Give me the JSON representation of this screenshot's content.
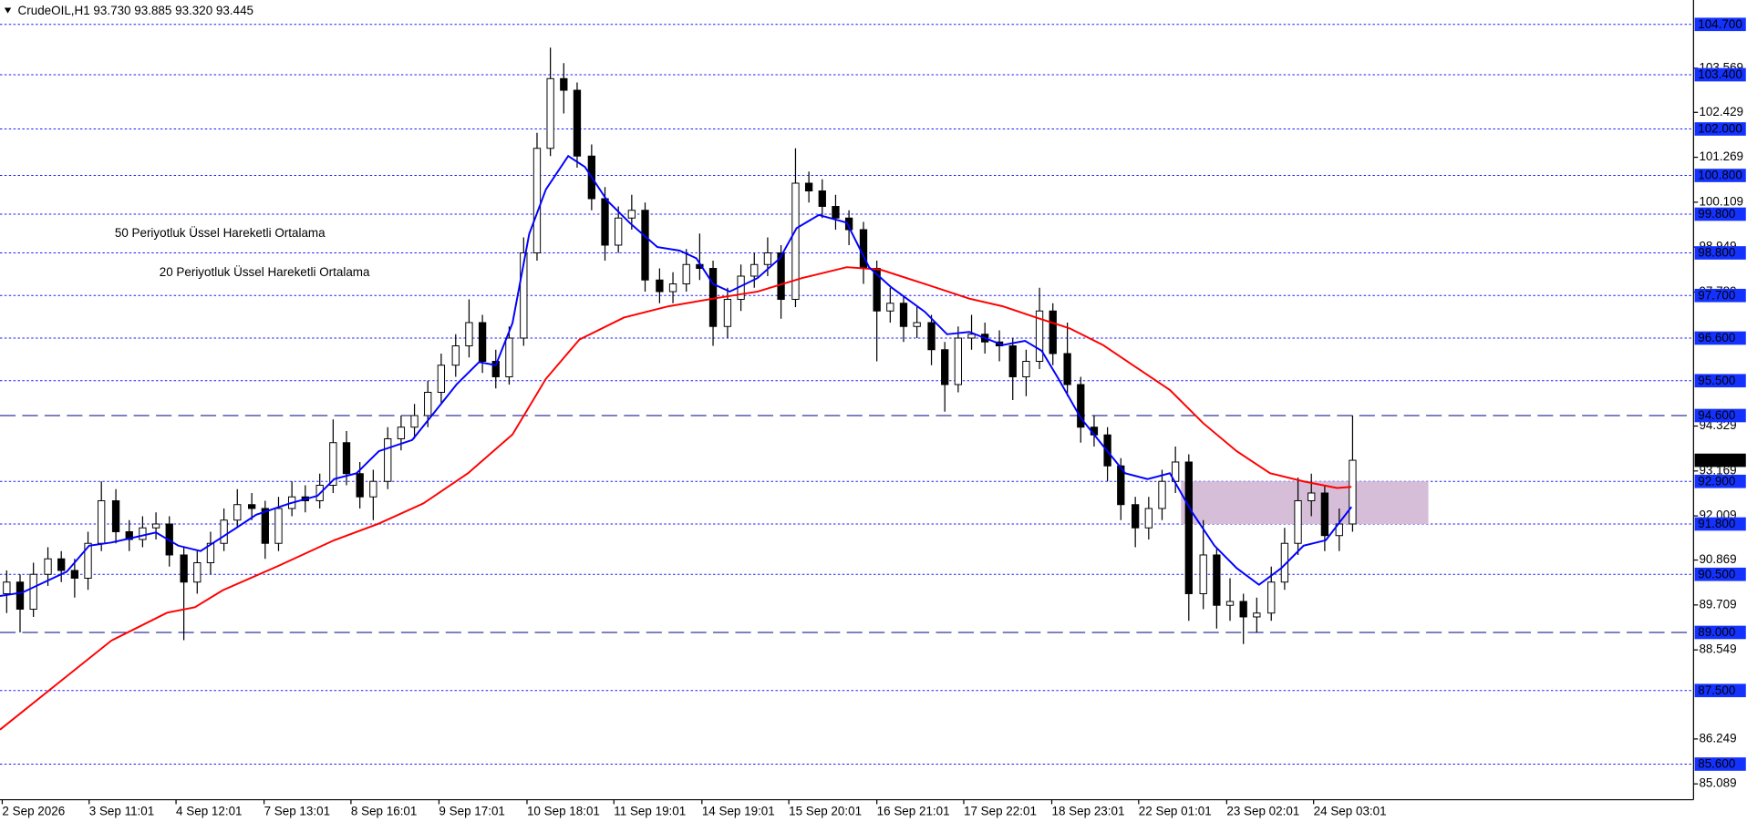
{
  "chart_data": {
    "type": "candlestick",
    "header": "CrudeOIL,H1  93.730 93.885 93.320 93.445",
    "xlim": [
      0,
      1520
    ],
    "ylim": [
      84.68,
      105.33
    ],
    "yticks": [
      103.569,
      102.429,
      101.269,
      100.109,
      98.949,
      97.789,
      94.329,
      93.169,
      92.009,
      90.869,
      89.709,
      88.549,
      86.249,
      85.089
    ],
    "xticks": [
      {
        "value": 2,
        "label": "2 Sep 2026"
      },
      {
        "value": 80,
        "label": "3 Sep 11:01"
      },
      {
        "value": 158,
        "label": "4 Sep 12:01"
      },
      {
        "value": 237,
        "label": "7 Sep 13:01"
      },
      {
        "value": 315,
        "label": "8 Sep 16:01"
      },
      {
        "value": 394,
        "label": "9 Sep 17:01"
      },
      {
        "value": 473,
        "label": "10 Sep 18:01"
      },
      {
        "value": 551,
        "label": "11 Sep 19:01"
      },
      {
        "value": 630,
        "label": "14 Sep 19:01"
      },
      {
        "value": 708,
        "label": "15 Sep 20:01"
      },
      {
        "value": 787,
        "label": "16 Sep 21:01"
      },
      {
        "value": 865,
        "label": "17 Sep 22:01"
      },
      {
        "value": 944,
        "label": "18 Sep 23:01"
      },
      {
        "value": 1022,
        "label": "22 Sep 01:01"
      },
      {
        "value": 1101,
        "label": "23 Sep 02:01"
      },
      {
        "value": 1179,
        "label": "24 Sep 03:01"
      }
    ],
    "levels": [
      {
        "value": 104.7,
        "label": "104.700",
        "style": "dot"
      },
      {
        "value": 103.4,
        "label": "103.400",
        "style": "dot"
      },
      {
        "value": 102.0,
        "label": "102.000",
        "style": "dot"
      },
      {
        "value": 100.8,
        "label": "100.800",
        "style": "dot"
      },
      {
        "value": 99.8,
        "label": "99.800",
        "style": "dot"
      },
      {
        "value": 98.8,
        "label": "98.800",
        "style": "dot"
      },
      {
        "value": 97.7,
        "label": "97.700",
        "style": "dot"
      },
      {
        "value": 96.6,
        "label": "96.600",
        "style": "dot"
      },
      {
        "value": 95.5,
        "label": "95.500",
        "style": "dot"
      },
      {
        "value": 94.6,
        "label": "94.600",
        "style": "dash"
      },
      {
        "value": 92.9,
        "label": "92.900",
        "style": "dot"
      },
      {
        "value": 91.8,
        "label": "91.800",
        "style": "dot"
      },
      {
        "value": 90.5,
        "label": "90.500",
        "style": "dot"
      },
      {
        "value": 89.0,
        "label": "89.000",
        "style": "dash"
      },
      {
        "value": 87.5,
        "label": "87.500",
        "style": "dot"
      },
      {
        "value": 85.6,
        "label": "85.600",
        "style": "dot"
      }
    ],
    "last_price": 93.445,
    "zone": {
      "x": [
        1060,
        1282
      ],
      "y": [
        91.8,
        92.9
      ],
      "color": "#d6bdd8"
    },
    "x": [
      6,
      18,
      30,
      43,
      55,
      67,
      79,
      91,
      104,
      116,
      128,
      140,
      152,
      165,
      177,
      189,
      201,
      213,
      226,
      238,
      250,
      262,
      274,
      287,
      299,
      311,
      323,
      335,
      348,
      360,
      372,
      384,
      396,
      409,
      421,
      433,
      445,
      457,
      470,
      482,
      494,
      506,
      518,
      531,
      543,
      555,
      567,
      579,
      592,
      604,
      616,
      628,
      640,
      653,
      665,
      677,
      689,
      701,
      714,
      726,
      738,
      750,
      762,
      775,
      787,
      799,
      811,
      823,
      836,
      848,
      860,
      872,
      884,
      897,
      909,
      921,
      933,
      945,
      958,
      970,
      982,
      994,
      1006,
      1019,
      1031,
      1043,
      1055,
      1067,
      1080,
      1092,
      1104,
      1116,
      1128,
      1141,
      1153,
      1165,
      1177,
      1189,
      1202,
      1214
    ],
    "ohlc": [
      [
        90.0,
        90.6,
        89.5,
        90.3
      ],
      [
        90.3,
        90.5,
        89.0,
        89.6
      ],
      [
        89.6,
        90.8,
        89.4,
        90.5
      ],
      [
        90.5,
        91.2,
        90.2,
        90.9
      ],
      [
        90.9,
        91.1,
        90.3,
        90.6
      ],
      [
        90.6,
        90.9,
        89.9,
        90.4
      ],
      [
        90.4,
        91.6,
        90.1,
        91.3
      ],
      [
        91.3,
        92.9,
        91.1,
        92.4
      ],
      [
        92.4,
        92.7,
        91.3,
        91.6
      ],
      [
        91.6,
        91.9,
        91.1,
        91.4
      ],
      [
        91.4,
        92.0,
        91.2,
        91.7
      ],
      [
        91.7,
        92.1,
        91.4,
        91.8
      ],
      [
        91.8,
        92.0,
        90.7,
        91.0
      ],
      [
        91.0,
        91.2,
        88.8,
        90.3
      ],
      [
        90.3,
        91.1,
        90.0,
        90.8
      ],
      [
        90.8,
        91.6,
        90.5,
        91.3
      ],
      [
        91.3,
        92.2,
        91.1,
        91.9
      ],
      [
        91.9,
        92.7,
        91.7,
        92.3
      ],
      [
        92.3,
        92.6,
        91.9,
        92.2
      ],
      [
        92.2,
        92.4,
        90.9,
        91.3
      ],
      [
        91.3,
        92.5,
        91.1,
        92.2
      ],
      [
        92.2,
        92.9,
        92.0,
        92.5
      ],
      [
        92.5,
        92.8,
        92.1,
        92.4
      ],
      [
        92.4,
        93.1,
        92.2,
        92.8
      ],
      [
        92.8,
        94.5,
        92.6,
        93.9
      ],
      [
        93.9,
        94.2,
        92.8,
        93.1
      ],
      [
        93.1,
        93.4,
        92.2,
        92.5
      ],
      [
        92.5,
        93.2,
        91.9,
        92.9
      ],
      [
        92.9,
        94.3,
        92.7,
        94.0
      ],
      [
        94.0,
        94.6,
        93.7,
        94.3
      ],
      [
        94.3,
        94.9,
        94.0,
        94.6
      ],
      [
        94.6,
        95.5,
        94.3,
        95.2
      ],
      [
        95.2,
        96.2,
        94.9,
        95.9
      ],
      [
        95.9,
        96.7,
        95.6,
        96.4
      ],
      [
        96.4,
        97.6,
        96.1,
        97.0
      ],
      [
        97.0,
        97.2,
        95.7,
        96.0
      ],
      [
        96.0,
        96.3,
        95.3,
        95.6
      ],
      [
        95.6,
        96.9,
        95.4,
        96.6
      ],
      [
        96.6,
        99.2,
        96.4,
        98.8
      ],
      [
        98.8,
        101.9,
        98.6,
        101.5
      ],
      [
        101.5,
        104.1,
        101.3,
        103.3
      ],
      [
        103.3,
        103.7,
        102.4,
        103.0
      ],
      [
        103.0,
        103.2,
        101.0,
        101.3
      ],
      [
        101.3,
        101.6,
        99.9,
        100.2
      ],
      [
        100.2,
        100.5,
        98.6,
        99.0
      ],
      [
        99.0,
        100.0,
        98.8,
        99.7
      ],
      [
        99.7,
        100.3,
        99.4,
        99.9
      ],
      [
        99.9,
        100.1,
        97.8,
        98.1
      ],
      [
        98.1,
        98.4,
        97.5,
        97.8
      ],
      [
        97.8,
        98.3,
        97.5,
        98.0
      ],
      [
        98.0,
        98.9,
        97.8,
        98.5
      ],
      [
        98.5,
        99.3,
        98.1,
        98.4
      ],
      [
        98.4,
        98.6,
        96.4,
        96.9
      ],
      [
        96.9,
        97.9,
        96.6,
        97.6
      ],
      [
        97.6,
        98.5,
        97.3,
        98.2
      ],
      [
        98.2,
        98.8,
        97.9,
        98.5
      ],
      [
        98.5,
        99.2,
        98.2,
        98.8
      ],
      [
        98.8,
        99.0,
        97.1,
        97.6
      ],
      [
        97.6,
        101.5,
        97.4,
        100.6
      ],
      [
        100.6,
        100.9,
        100.1,
        100.4
      ],
      [
        100.4,
        100.7,
        99.7,
        100.0
      ],
      [
        100.0,
        100.3,
        99.4,
        99.7
      ],
      [
        99.7,
        99.9,
        99.0,
        99.4
      ],
      [
        99.4,
        99.6,
        98.0,
        98.4
      ],
      [
        98.4,
        98.6,
        96.0,
        97.3
      ],
      [
        97.3,
        97.9,
        97.0,
        97.5
      ],
      [
        97.5,
        97.7,
        96.5,
        96.9
      ],
      [
        96.9,
        97.4,
        96.6,
        97.0
      ],
      [
        97.0,
        97.2,
        95.9,
        96.3
      ],
      [
        96.3,
        96.5,
        94.7,
        95.4
      ],
      [
        95.4,
        96.9,
        95.2,
        96.6
      ],
      [
        96.6,
        97.2,
        96.3,
        96.7
      ],
      [
        96.7,
        97.0,
        96.2,
        96.5
      ],
      [
        96.5,
        96.8,
        96.0,
        96.4
      ],
      [
        96.4,
        96.6,
        95.0,
        95.6
      ],
      [
        95.6,
        96.3,
        95.1,
        96.0
      ],
      [
        96.0,
        97.9,
        95.8,
        97.3
      ],
      [
        97.3,
        97.5,
        95.9,
        96.2
      ],
      [
        96.2,
        97.0,
        95.1,
        95.4
      ],
      [
        95.4,
        95.6,
        93.9,
        94.3
      ],
      [
        94.3,
        94.6,
        93.8,
        94.1
      ],
      [
        94.1,
        94.3,
        92.9,
        93.3
      ],
      [
        93.3,
        93.5,
        91.9,
        92.3
      ],
      [
        92.3,
        92.5,
        91.2,
        91.7
      ],
      [
        91.7,
        92.5,
        91.4,
        92.2
      ],
      [
        92.2,
        93.2,
        91.9,
        92.9
      ],
      [
        92.9,
        93.8,
        92.6,
        93.4
      ],
      [
        93.4,
        93.6,
        89.3,
        90.0
      ],
      [
        90.0,
        91.9,
        89.6,
        91.0
      ],
      [
        91.0,
        91.2,
        89.1,
        89.7
      ],
      [
        89.7,
        90.4,
        89.3,
        89.8
      ],
      [
        89.8,
        90.0,
        88.7,
        89.4
      ],
      [
        89.4,
        89.9,
        89.0,
        89.5
      ],
      [
        89.5,
        90.7,
        89.3,
        90.3
      ],
      [
        90.3,
        91.7,
        90.1,
        91.3
      ],
      [
        91.3,
        93.0,
        91.0,
        92.4
      ],
      [
        92.4,
        93.1,
        92.0,
        92.6
      ],
      [
        92.6,
        92.8,
        91.1,
        91.5
      ],
      [
        91.5,
        92.2,
        91.1,
        91.8
      ],
      [
        91.8,
        94.6,
        91.6,
        93.445
      ]
    ],
    "series": [
      {
        "name": "50 Periyotluk Üssel Hareketli Ortalama",
        "color": "#ff0000",
        "x": [
          0,
          50,
          100,
          150,
          175,
          200,
          250,
          300,
          340,
          380,
          420,
          460,
          490,
          520,
          560,
          600,
          640,
          680,
          720,
          760,
          790,
          830,
          870,
          900,
          930,
          960,
          990,
          1020,
          1050,
          1080,
          1110,
          1140,
          1170,
          1200,
          1213
        ],
        "values": [
          86.49,
          87.64,
          88.79,
          89.51,
          89.65,
          90.09,
          90.72,
          91.38,
          91.81,
          92.33,
          93.11,
          94.11,
          95.55,
          96.56,
          97.13,
          97.42,
          97.62,
          97.8,
          98.15,
          98.43,
          98.37,
          98.0,
          97.62,
          97.42,
          97.13,
          96.85,
          96.42,
          95.84,
          95.26,
          94.4,
          93.68,
          93.11,
          92.9,
          92.73,
          92.76
        ]
      },
      {
        "name": "20 Periyotluk Üssel Hareketli Ortalama",
        "color": "#0000ff",
        "x": [
          0,
          20,
          60,
          80,
          100,
          140,
          160,
          180,
          200,
          230,
          260,
          285,
          300,
          320,
          340,
          370,
          390,
          410,
          430,
          445,
          460,
          475,
          490,
          510,
          525,
          545,
          565,
          590,
          610,
          625,
          640,
          655,
          680,
          700,
          715,
          735,
          760,
          780,
          800,
          830,
          850,
          870,
          900,
          920,
          935,
          950,
          970,
          990,
          1010,
          1030,
          1050,
          1070,
          1090,
          1110,
          1130,
          1150,
          1170,
          1190,
          1213
        ],
        "values": [
          89.94,
          90.03,
          90.57,
          91.24,
          91.32,
          91.58,
          91.24,
          91.1,
          91.47,
          92.04,
          92.33,
          92.53,
          92.96,
          93.11,
          93.68,
          93.97,
          94.69,
          95.41,
          95.98,
          95.9,
          96.99,
          99.29,
          100.44,
          101.3,
          101.02,
          100.15,
          99.58,
          98.95,
          98.86,
          98.66,
          98.0,
          97.8,
          98.15,
          98.66,
          99.44,
          99.78,
          99.58,
          98.43,
          97.91,
          97.28,
          96.7,
          96.76,
          96.42,
          96.53,
          96.27,
          95.55,
          94.54,
          93.82,
          93.11,
          92.96,
          93.11,
          92.1,
          91.24,
          90.66,
          90.23,
          90.66,
          91.24,
          91.38,
          92.24
        ]
      }
    ]
  }
}
